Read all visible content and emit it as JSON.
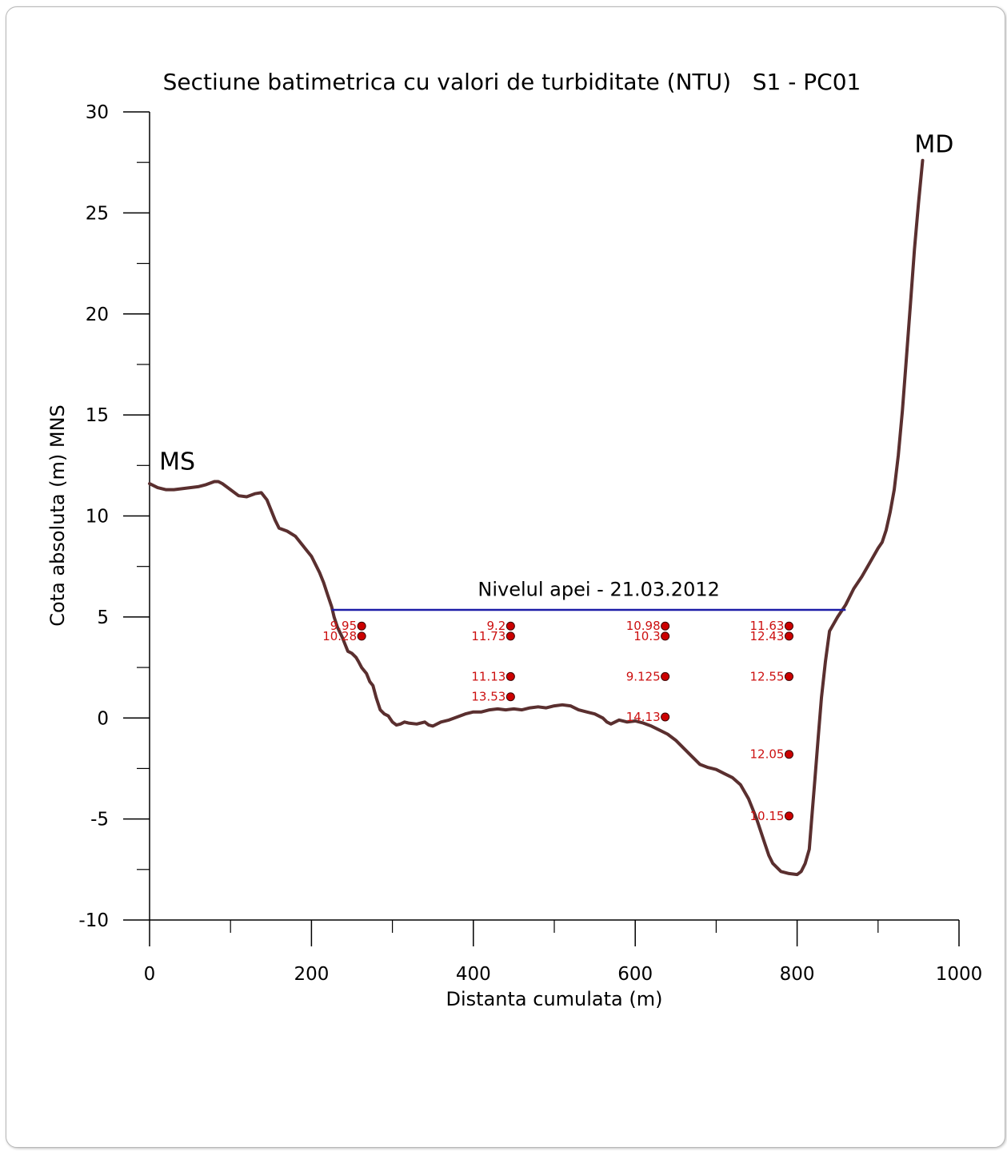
{
  "chart_data": {
    "type": "line",
    "title": "Sectiune batimetrica cu valori de turbiditate (NTU)   S1 - PC01",
    "xlabel": "Distanta cumulata (m)",
    "ylabel": "Cota absoluta (m) MNS",
    "xlim": [
      0,
      1000
    ],
    "ylim": [
      -10,
      30
    ],
    "x_ticks": [
      0,
      200,
      400,
      600,
      800,
      1000
    ],
    "y_ticks": [
      -10,
      -5,
      0,
      5,
      10,
      15,
      20,
      25,
      30
    ],
    "grid": false,
    "colors": {
      "profile": "#5a2f2f",
      "water": "#1c1ca8",
      "points": "#cc0000",
      "point_labels": "#cc1010"
    },
    "series": [
      {
        "type": "line",
        "x": [
          0,
          10,
          20,
          30,
          40,
          50,
          60,
          70,
          80,
          85,
          90,
          100,
          110,
          120,
          130,
          138,
          145,
          150,
          155,
          160,
          170,
          180,
          190,
          200,
          205,
          210,
          215,
          220,
          225,
          228,
          232,
          238,
          242,
          245,
          250,
          255,
          258,
          262,
          268,
          272,
          276,
          280,
          285,
          290,
          295,
          300,
          305,
          310,
          315,
          320,
          330,
          340,
          345,
          350,
          360,
          370,
          380,
          390,
          400,
          410,
          420,
          430,
          440,
          450,
          460,
          470,
          480,
          490,
          500,
          510,
          520,
          530,
          540,
          550,
          560,
          565,
          570,
          580,
          590,
          600,
          610,
          620,
          630,
          640,
          650,
          660,
          670,
          680,
          690,
          700,
          710,
          720,
          730,
          740,
          750,
          760,
          765,
          770,
          780,
          790,
          800,
          805,
          810,
          815,
          818,
          822,
          826,
          830,
          835,
          840,
          850,
          860,
          870,
          880,
          890,
          900,
          905,
          910,
          915,
          920,
          925,
          930,
          935,
          940,
          945,
          950,
          955
        ],
        "values": [
          11.6,
          11.4,
          11.3,
          11.3,
          11.35,
          11.4,
          11.45,
          11.55,
          11.7,
          11.7,
          11.6,
          11.3,
          11.0,
          10.95,
          11.1,
          11.15,
          10.8,
          10.3,
          9.8,
          9.4,
          9.25,
          9.0,
          8.5,
          8.0,
          7.6,
          7.2,
          6.7,
          6.1,
          5.5,
          5.0,
          4.5,
          4.0,
          3.6,
          3.3,
          3.2,
          3.0,
          2.8,
          2.5,
          2.2,
          1.8,
          1.6,
          1.0,
          0.4,
          0.2,
          0.1,
          -0.2,
          -0.35,
          -0.3,
          -0.2,
          -0.25,
          -0.3,
          -0.2,
          -0.35,
          -0.4,
          -0.2,
          -0.1,
          0.05,
          0.2,
          0.3,
          0.3,
          0.4,
          0.45,
          0.4,
          0.45,
          0.4,
          0.5,
          0.55,
          0.5,
          0.6,
          0.65,
          0.6,
          0.4,
          0.3,
          0.2,
          0.0,
          -0.2,
          -0.3,
          -0.1,
          -0.2,
          -0.15,
          -0.25,
          -0.4,
          -0.6,
          -0.8,
          -1.1,
          -1.5,
          -1.9,
          -2.3,
          -2.45,
          -2.55,
          -2.75,
          -2.95,
          -3.3,
          -4.0,
          -5.0,
          -6.2,
          -6.8,
          -7.2,
          -7.6,
          -7.7,
          -7.75,
          -7.6,
          -7.2,
          -6.5,
          -5.0,
          -3.0,
          -1.0,
          1.0,
          2.8,
          4.3,
          5.0,
          5.6,
          6.4,
          7.0,
          7.7,
          8.4,
          8.7,
          9.3,
          10.2,
          11.3,
          13.0,
          15.2,
          17.8,
          20.5,
          23.2,
          25.5,
          27.6
        ]
      },
      {
        "type": "line",
        "name": "Nivelul apei - 21.03.2012",
        "x": [
          225,
          860
        ],
        "values": [
          5.35,
          5.35
        ]
      }
    ],
    "points": [
      {
        "x": 262,
        "y": 4.55,
        "label": "9.95"
      },
      {
        "x": 262,
        "y": 4.05,
        "label": "10.28"
      },
      {
        "x": 446,
        "y": 4.55,
        "label": "9.2"
      },
      {
        "x": 446,
        "y": 4.05,
        "label": "11.73"
      },
      {
        "x": 446,
        "y": 2.05,
        "label": "11.13"
      },
      {
        "x": 446,
        "y": 1.05,
        "label": "13.53"
      },
      {
        "x": 637,
        "y": 4.55,
        "label": "10.98"
      },
      {
        "x": 637,
        "y": 4.05,
        "label": "10.3"
      },
      {
        "x": 637,
        "y": 2.05,
        "label": "9.125"
      },
      {
        "x": 637,
        "y": 0.05,
        "label": "14.13"
      },
      {
        "x": 790,
        "y": 4.55,
        "label": "11.63"
      },
      {
        "x": 790,
        "y": 4.05,
        "label": "12.43"
      },
      {
        "x": 790,
        "y": 2.05,
        "label": "12.55"
      },
      {
        "x": 790,
        "y": -1.8,
        "label": "12.05"
      },
      {
        "x": 790,
        "y": -4.85,
        "label": "10.15"
      }
    ],
    "annotations": {
      "left_bank": {
        "text": "MS",
        "x": 12,
        "y": 12.3
      },
      "right_bank": {
        "text": "MD",
        "x": 945,
        "y": 28.0
      },
      "water_label": {
        "text": "Nivelul apei - 21.03.2012",
        "x": 555,
        "y": 6.05
      }
    }
  }
}
